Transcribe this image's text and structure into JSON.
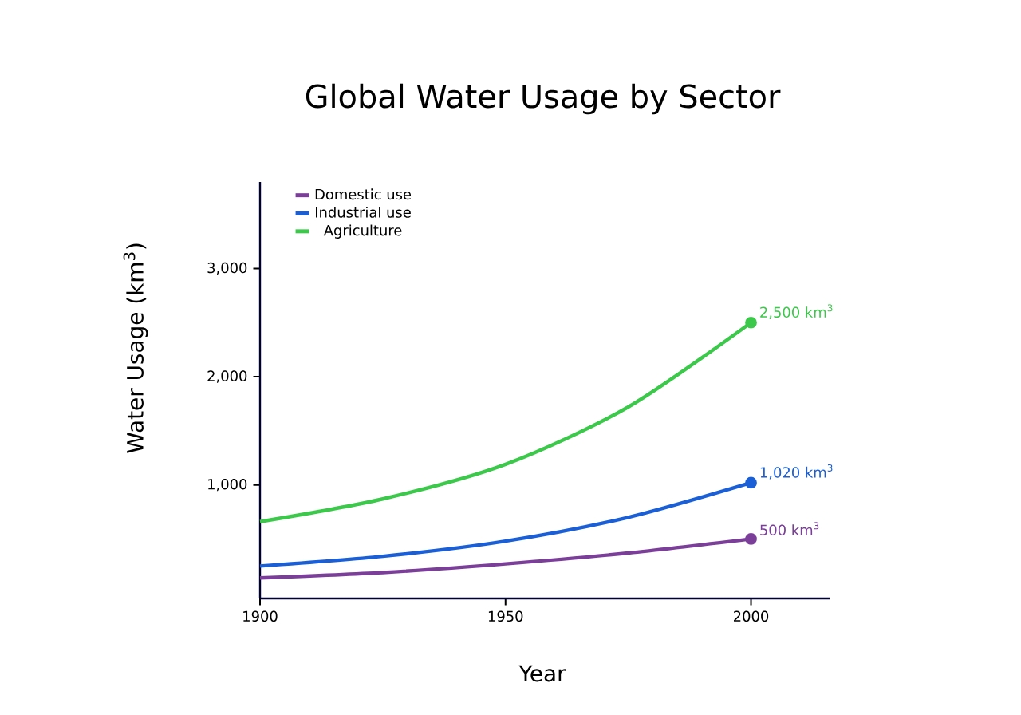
{
  "chart_data": {
    "type": "line",
    "title": "Global Water Usage by Sector",
    "xlabel": "Year",
    "ylabel": "Water Usage (km$^{3}$)",
    "xlim": [
      1900,
      2016
    ],
    "ylim": [
      -50,
      3800
    ],
    "xticks": [
      1900,
      1950,
      2000
    ],
    "yticks": [
      {
        "value": 1000,
        "label": "1,000"
      },
      {
        "value": 2000,
        "label": "2,000"
      },
      {
        "value": 3000,
        "label": "3,000"
      }
    ],
    "x": [
      1900,
      1925,
      1950,
      1975,
      2000
    ],
    "series": [
      {
        "name": "Domestic use",
        "color": "#7b3f9a",
        "values": [
          140,
          190,
          270,
          370,
          500
        ],
        "value_labels": [
          null,
          null,
          null,
          null,
          "500 km$^{3}$"
        ]
      },
      {
        "name": "Industrial use",
        "color": "#1a5fd6",
        "values": [
          250,
          340,
          480,
          700,
          1020
        ],
        "value_labels": [
          null,
          null,
          null,
          null,
          "1,020 km$^{3}$"
        ]
      },
      {
        "name": "Agriculture",
        "color": "#3cc84a",
        "values": [
          660,
          870,
          1190,
          1720,
          2500
        ],
        "value_labels": [
          null,
          null,
          null,
          null,
          "2,500 km$^{3}$"
        ]
      }
    ],
    "legend": "top left",
    "grid": false,
    "line_style": "solid"
  }
}
